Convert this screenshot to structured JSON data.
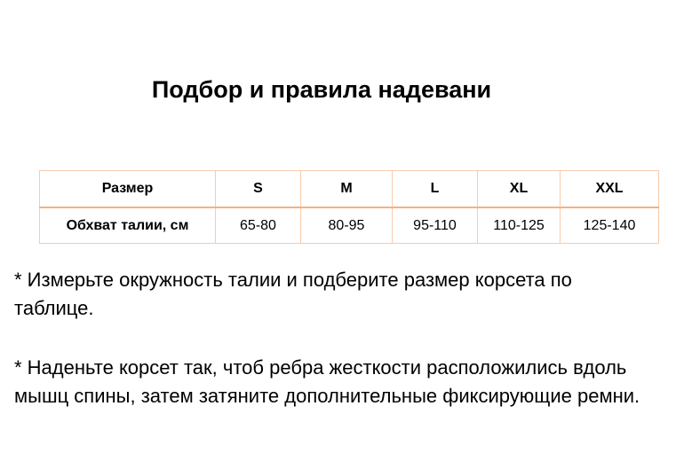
{
  "title": "Подбор и правила надевани",
  "table": {
    "header": [
      "Размер",
      "S",
      "M",
      "L",
      "XL",
      "XXL"
    ],
    "row": [
      "Обхват талии, см",
      "65-80",
      "80-95",
      "95-110",
      "110-125",
      "125-140"
    ]
  },
  "paragraphs": [
    "* Измерьте окружность талии и подберите размер корсета по таблице.",
    "* Наденьте корсет так, чтоб ребра жесткости расположились вдоль мышц спины, затем затяните дополнительные фиксирующие ремни."
  ]
}
